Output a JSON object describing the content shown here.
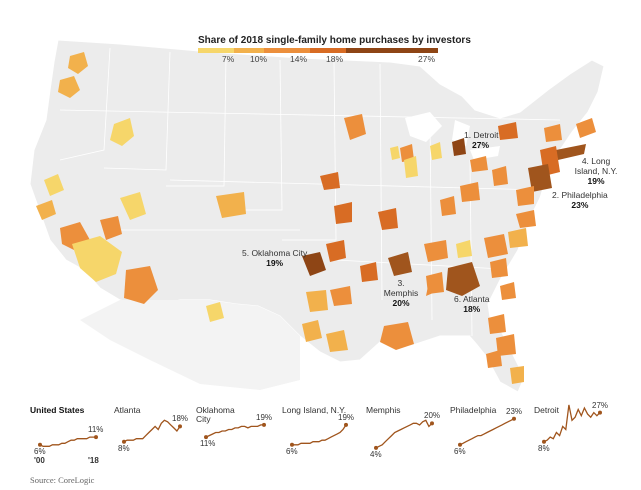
{
  "legend": {
    "title": "Share of 2018 single-family home purchases by investors",
    "ticks": [
      "7%",
      "10%",
      "14%",
      "18%",
      "27%"
    ],
    "colors": [
      "#f6d66a",
      "#f2b14c",
      "#ec8f3c",
      "#d86c24",
      "#8e4515"
    ]
  },
  "callouts": [
    {
      "id": "detroit",
      "label": "1. Detroit",
      "value": "27%"
    },
    {
      "id": "philadelphia",
      "label": "2. Philadelphia",
      "value": "23%"
    },
    {
      "id": "memphis",
      "label": "3. Memphis",
      "value": "20%"
    },
    {
      "id": "longisland",
      "label": "4. Long Island, N.Y.",
      "value": "19%"
    },
    {
      "id": "oklahoma",
      "label": "5. Oklahoma City",
      "value": "19%"
    },
    {
      "id": "atlanta",
      "label": "6. Atlanta",
      "value": "18%"
    }
  ],
  "sparklines": [
    {
      "name": "United States",
      "start": "6%",
      "end": "11%",
      "start_year": "'00",
      "end_year": "'18",
      "values": [
        6,
        5,
        5,
        5,
        6,
        6,
        6,
        7,
        7,
        8,
        9,
        9,
        10,
        10,
        10,
        10,
        11,
        11,
        11
      ]
    },
    {
      "name": "Atlanta",
      "start": "8%",
      "end": "18%",
      "values": [
        8,
        9,
        9,
        9,
        10,
        10,
        10,
        12,
        14,
        16,
        18,
        16,
        20,
        22,
        21,
        19,
        17,
        15,
        18
      ]
    },
    {
      "name": "Oklahoma City",
      "start": "11%",
      "end": "19%",
      "values": [
        11,
        12,
        13,
        14,
        14,
        15,
        15,
        16,
        16,
        17,
        17,
        18,
        18,
        17,
        18,
        18,
        18,
        19,
        19
      ]
    },
    {
      "name": "Long Island, N.Y.",
      "start": "6%",
      "end": "19%",
      "values": [
        6,
        6,
        6,
        7,
        7,
        7,
        7,
        8,
        8,
        8,
        9,
        9,
        10,
        11,
        12,
        13,
        14,
        16,
        19
      ]
    },
    {
      "name": "Memphis",
      "start": "4%",
      "end": "20%",
      "values": [
        4,
        5,
        6,
        8,
        10,
        12,
        14,
        15,
        16,
        17,
        18,
        19,
        20,
        20,
        19,
        21,
        22,
        18,
        20
      ]
    },
    {
      "name": "Philadelphia",
      "start": "6%",
      "end": "23%",
      "values": [
        6,
        7,
        8,
        9,
        10,
        11,
        12,
        12,
        13,
        14,
        15,
        16,
        17,
        18,
        19,
        20,
        21,
        22,
        23
      ]
    },
    {
      "name": "Detroit",
      "start": "8%",
      "end": "27%",
      "values": [
        8,
        9,
        11,
        10,
        14,
        12,
        18,
        16,
        32,
        22,
        24,
        29,
        25,
        30,
        26,
        24,
        27,
        25,
        27
      ]
    }
  ],
  "source": "Source: CoreLogic"
}
